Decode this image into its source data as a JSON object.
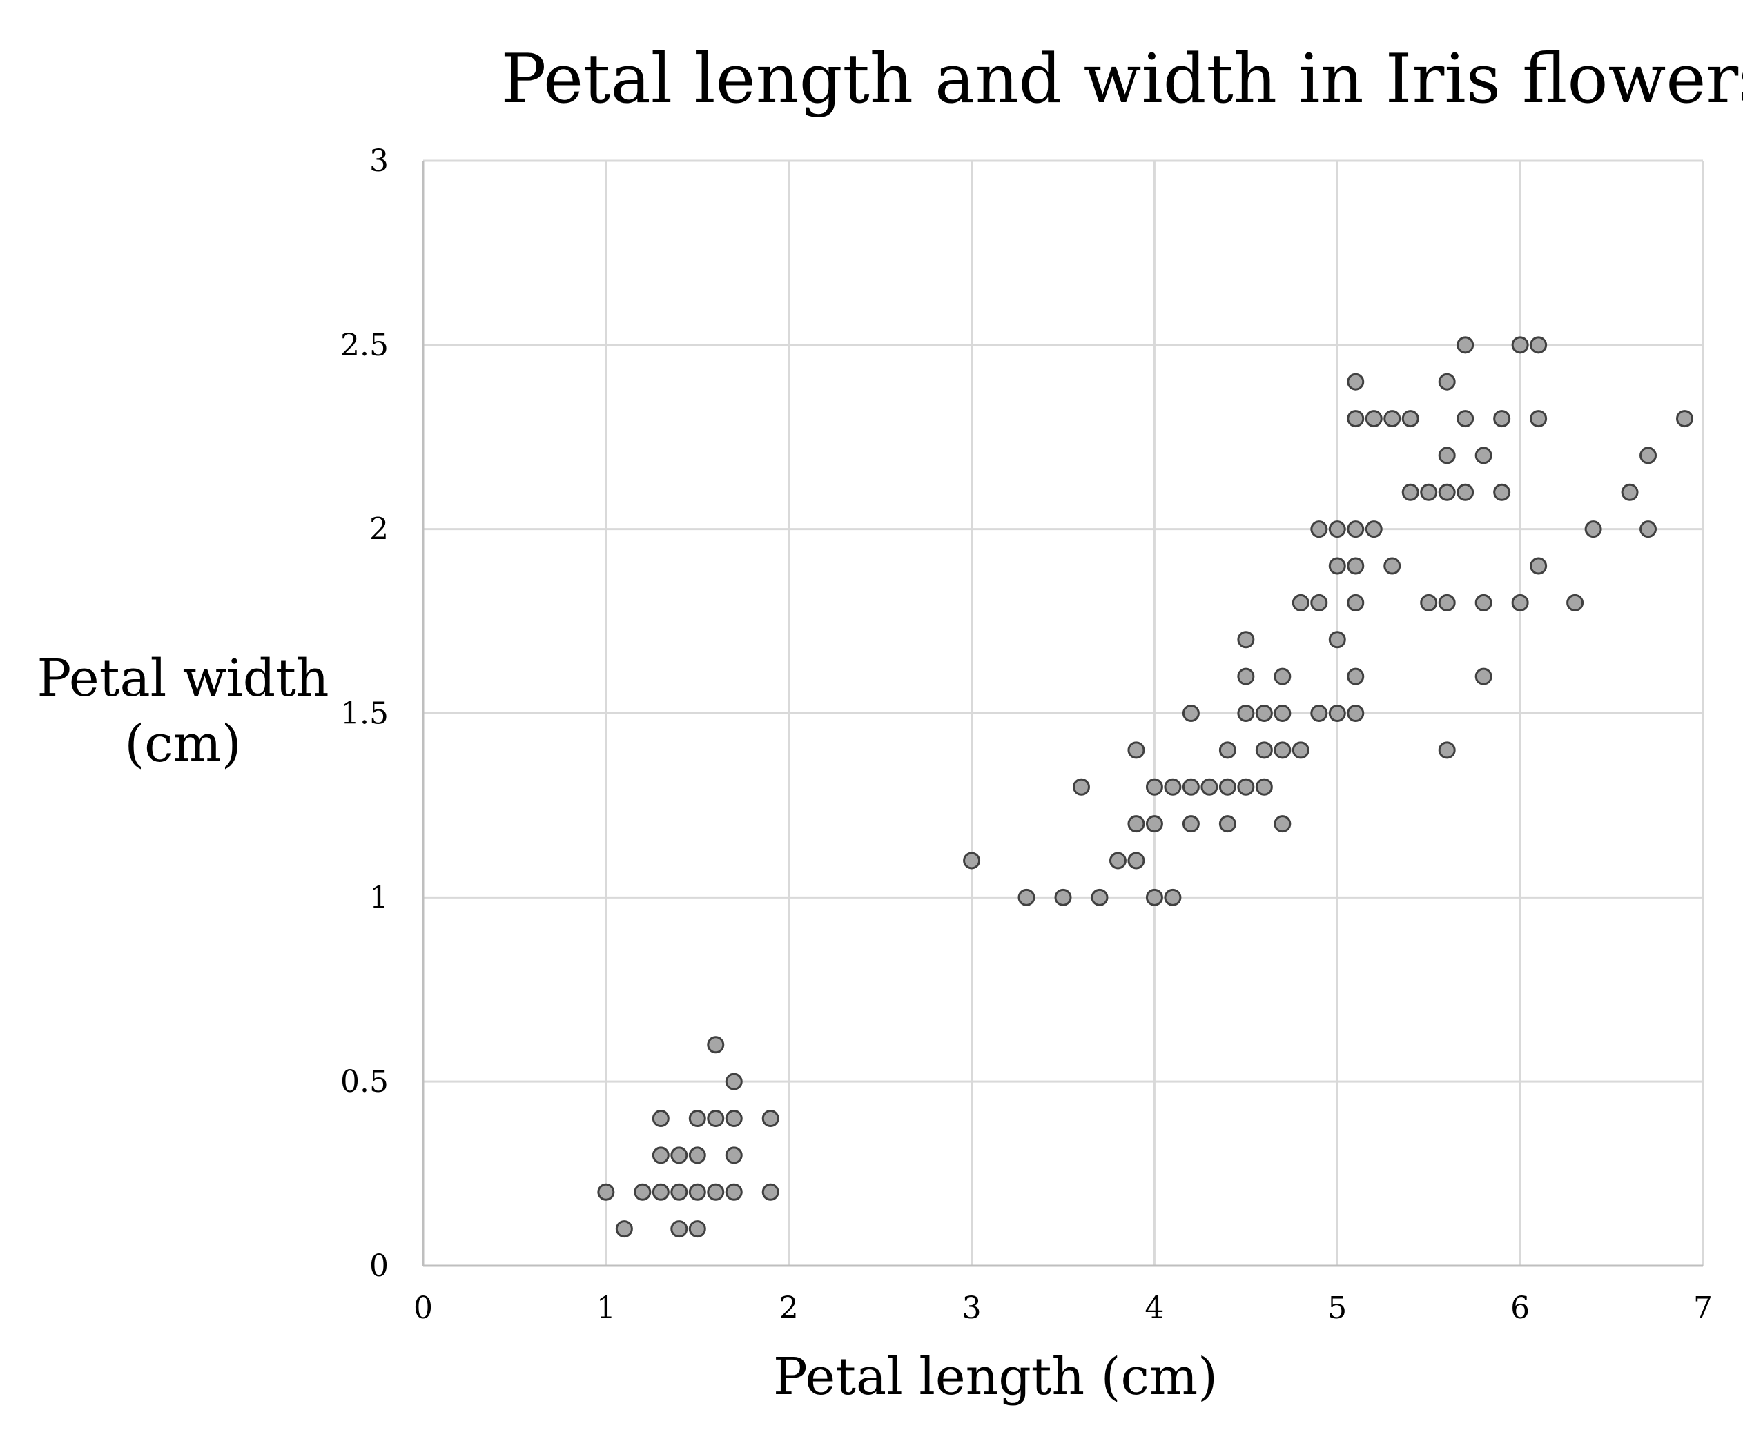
{
  "chart_data": {
    "type": "scatter",
    "title": "Petal length and width in Iris flowers",
    "xlabel": "Petal length (cm)",
    "ylabel_lines": [
      "Petal width",
      "(cm)"
    ],
    "xlim": [
      0,
      7
    ],
    "ylim": [
      0,
      3
    ],
    "x_ticks": [
      "0",
      "1",
      "2",
      "3",
      "4",
      "5",
      "6",
      "7"
    ],
    "y_ticks": [
      "0",
      "0.5",
      "1",
      "1.5",
      "2",
      "2.5",
      "3"
    ],
    "grid": true,
    "legend": "none",
    "marker_fill": "#a6a6a6",
    "marker_stroke": "#404040",
    "points": [
      [
        1.0,
        0.2
      ],
      [
        1.1,
        0.1
      ],
      [
        1.2,
        0.2
      ],
      [
        1.3,
        0.2
      ],
      [
        1.3,
        0.3
      ],
      [
        1.3,
        0.4
      ],
      [
        1.4,
        0.1
      ],
      [
        1.4,
        0.2
      ],
      [
        1.4,
        0.3
      ],
      [
        1.5,
        0.1
      ],
      [
        1.5,
        0.2
      ],
      [
        1.5,
        0.3
      ],
      [
        1.5,
        0.4
      ],
      [
        1.6,
        0.2
      ],
      [
        1.6,
        0.4
      ],
      [
        1.6,
        0.6
      ],
      [
        1.7,
        0.2
      ],
      [
        1.7,
        0.3
      ],
      [
        1.7,
        0.4
      ],
      [
        1.7,
        0.5
      ],
      [
        1.9,
        0.2
      ],
      [
        1.9,
        0.4
      ],
      [
        3.0,
        1.1
      ],
      [
        3.3,
        1.0
      ],
      [
        3.5,
        1.0
      ],
      [
        3.6,
        1.3
      ],
      [
        3.7,
        1.0
      ],
      [
        3.8,
        1.1
      ],
      [
        3.9,
        1.1
      ],
      [
        3.9,
        1.2
      ],
      [
        3.9,
        1.4
      ],
      [
        4.0,
        1.0
      ],
      [
        4.0,
        1.2
      ],
      [
        4.0,
        1.3
      ],
      [
        4.1,
        1.0
      ],
      [
        4.1,
        1.3
      ],
      [
        4.2,
        1.2
      ],
      [
        4.2,
        1.3
      ],
      [
        4.2,
        1.5
      ],
      [
        4.3,
        1.3
      ],
      [
        4.4,
        1.2
      ],
      [
        4.4,
        1.3
      ],
      [
        4.4,
        1.4
      ],
      [
        4.5,
        1.3
      ],
      [
        4.5,
        1.5
      ],
      [
        4.5,
        1.6
      ],
      [
        4.5,
        1.7
      ],
      [
        4.6,
        1.3
      ],
      [
        4.6,
        1.4
      ],
      [
        4.6,
        1.5
      ],
      [
        4.7,
        1.2
      ],
      [
        4.7,
        1.4
      ],
      [
        4.7,
        1.5
      ],
      [
        4.7,
        1.6
      ],
      [
        4.8,
        1.4
      ],
      [
        4.8,
        1.8
      ],
      [
        4.9,
        1.5
      ],
      [
        4.9,
        1.8
      ],
      [
        4.9,
        2.0
      ],
      [
        5.0,
        1.5
      ],
      [
        5.0,
        1.7
      ],
      [
        5.0,
        1.9
      ],
      [
        5.0,
        2.0
      ],
      [
        5.1,
        1.5
      ],
      [
        5.1,
        1.6
      ],
      [
        5.1,
        1.8
      ],
      [
        5.1,
        1.9
      ],
      [
        5.1,
        2.0
      ],
      [
        5.1,
        2.3
      ],
      [
        5.1,
        2.4
      ],
      [
        5.2,
        2.0
      ],
      [
        5.2,
        2.3
      ],
      [
        5.3,
        1.9
      ],
      [
        5.3,
        2.3
      ],
      [
        5.4,
        2.1
      ],
      [
        5.4,
        2.3
      ],
      [
        5.5,
        1.8
      ],
      [
        5.5,
        2.1
      ],
      [
        5.6,
        1.4
      ],
      [
        5.6,
        1.8
      ],
      [
        5.6,
        2.1
      ],
      [
        5.6,
        2.2
      ],
      [
        5.6,
        2.4
      ],
      [
        5.7,
        2.1
      ],
      [
        5.7,
        2.3
      ],
      [
        5.7,
        2.5
      ],
      [
        5.8,
        1.6
      ],
      [
        5.8,
        1.8
      ],
      [
        5.8,
        2.2
      ],
      [
        5.9,
        2.1
      ],
      [
        5.9,
        2.3
      ],
      [
        6.0,
        1.8
      ],
      [
        6.0,
        2.5
      ],
      [
        6.1,
        1.9
      ],
      [
        6.1,
        2.3
      ],
      [
        6.1,
        2.5
      ],
      [
        6.3,
        1.8
      ],
      [
        6.4,
        2.0
      ],
      [
        6.6,
        2.1
      ],
      [
        6.7,
        2.0
      ],
      [
        6.7,
        2.2
      ],
      [
        6.9,
        2.3
      ]
    ]
  }
}
